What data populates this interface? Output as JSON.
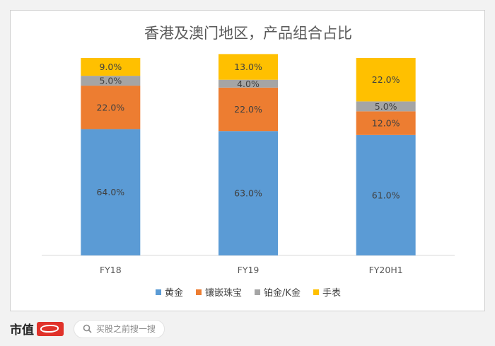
{
  "chart_data": {
    "type": "stacked-bar",
    "title": "香港及澳门地区，产品组合占比",
    "categories": [
      "FY18",
      "FY19",
      "FY20H1"
    ],
    "series": [
      {
        "name": "黄金",
        "color": "#5b9bd5",
        "values": [
          64.0,
          63.0,
          61.0
        ],
        "labels": [
          "64.0%",
          "63.0%",
          "61.0%"
        ]
      },
      {
        "name": "镶嵌珠宝",
        "color": "#ed7d31",
        "values": [
          22.0,
          22.0,
          12.0
        ],
        "labels": [
          "22.0%",
          "22.0%",
          "12.0%"
        ]
      },
      {
        "name": "铂金/K金",
        "color": "#a5a5a5",
        "values": [
          5.0,
          4.0,
          5.0
        ],
        "labels": [
          "5.0%",
          "4.0%",
          "5.0%"
        ]
      },
      {
        "name": "手表",
        "color": "#ffc000",
        "values": [
          9.0,
          13.0,
          22.0
        ],
        "labels": [
          "9.0%",
          "13.0%",
          "22.0%"
        ]
      }
    ],
    "ylim": [
      0,
      100
    ],
    "unit": "%",
    "legend_position": "bottom",
    "grid": false
  },
  "footer": {
    "brand": "市值",
    "search_placeholder": "买股之前搜一搜"
  }
}
